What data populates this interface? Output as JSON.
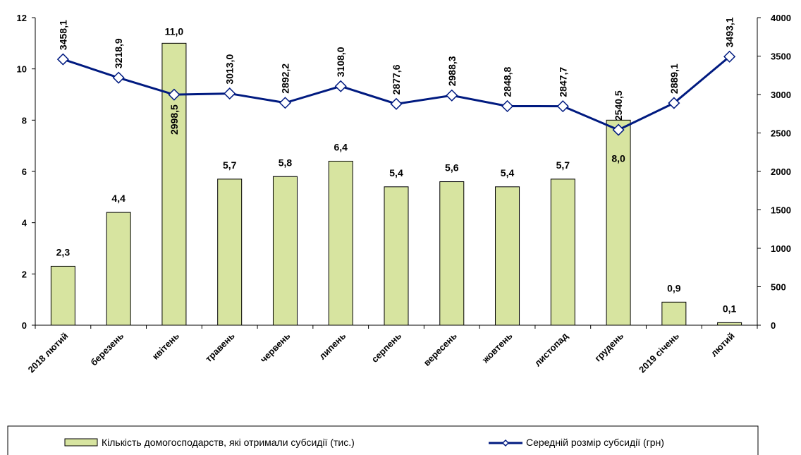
{
  "chart_data": {
    "type": "bar",
    "categories": [
      "2018 лютий",
      "березень",
      "квітень",
      "травень",
      "червень",
      "липень",
      "серпень",
      "вересень",
      "жовтень",
      "листопад",
      "грудень",
      "2019 січень",
      "лютий"
    ],
    "series": [
      {
        "name": "Кількість домогосподарств, які отримали субсидії (тис.)",
        "type": "bar",
        "axis": "left",
        "values": [
          2.3,
          4.4,
          11.0,
          5.7,
          5.8,
          6.4,
          5.4,
          5.6,
          5.4,
          5.7,
          8.0,
          0.9,
          0.1
        ],
        "labels": [
          "2,3",
          "4,4",
          "11,0",
          "5,7",
          "5,8",
          "6,4",
          "5,4",
          "5,6",
          "5,4",
          "5,7",
          "8,0",
          "0,9",
          "0,1"
        ],
        "color": "#d7e4a0"
      },
      {
        "name": "Середній розмір субсидії (грн)",
        "type": "line",
        "axis": "right",
        "values": [
          3458.1,
          3218.9,
          2998.5,
          3013.0,
          2892.2,
          3108.0,
          2877.6,
          2988.3,
          2848.8,
          2847.7,
          2540.5,
          2889.1,
          3493.1
        ],
        "labels": [
          "3458,1",
          "3218,9",
          "2998,5",
          "3013,0",
          "2892,2",
          "3108,0",
          "2877,6",
          "2988,3",
          "2848,8",
          "2847,7",
          "2540,5",
          "2889,1",
          "3493,1"
        ],
        "color": "#001a80"
      }
    ],
    "y_left": {
      "ylim": [
        0,
        12
      ],
      "ticks": [
        "0",
        "2",
        "4",
        "6",
        "8",
        "10",
        "12"
      ]
    },
    "y_right": {
      "ylim": [
        0,
        4000
      ],
      "ticks": [
        "0",
        "500",
        "1000",
        "1500",
        "2000",
        "2500",
        "3000",
        "3500",
        "4000"
      ]
    },
    "grid": false,
    "legend_position": "bottom"
  }
}
